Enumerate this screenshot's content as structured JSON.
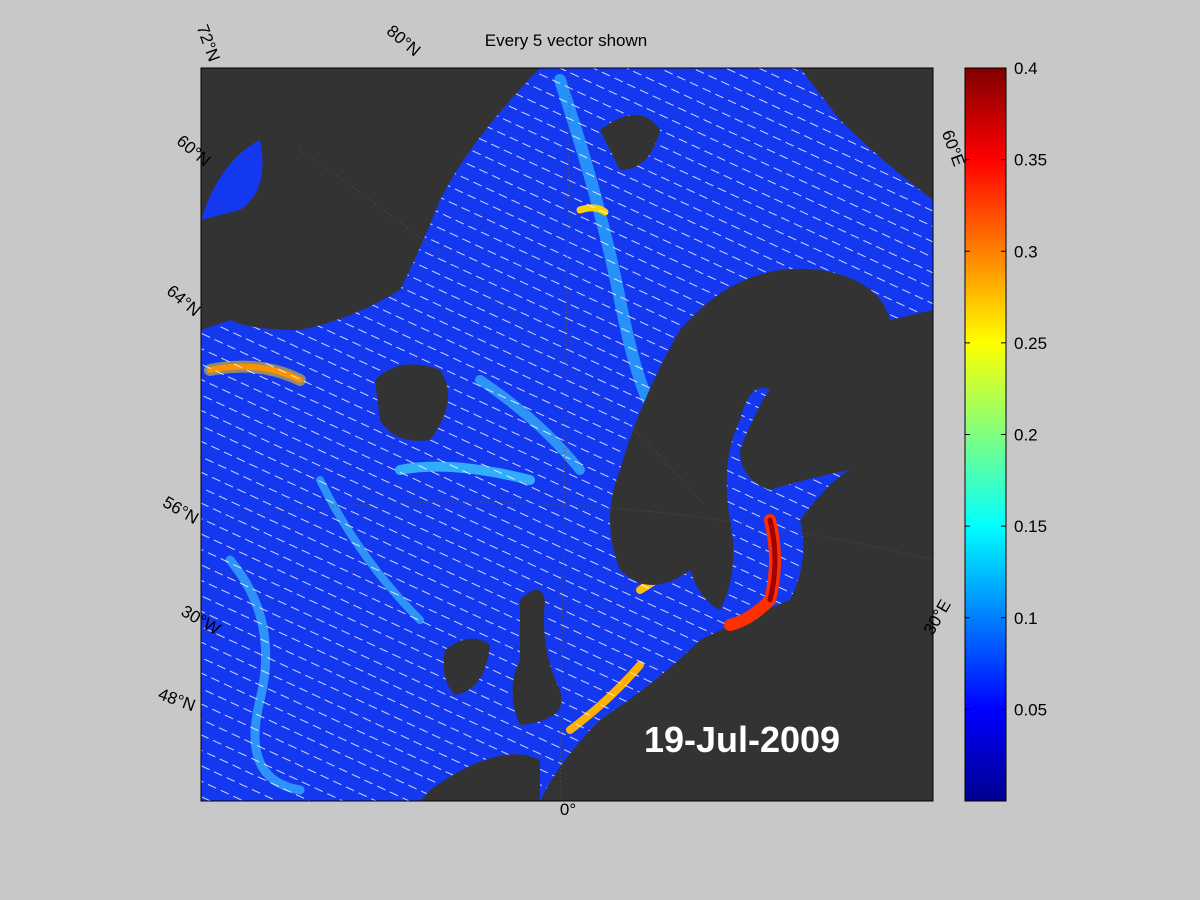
{
  "title": "Every 5 vector shown",
  "date_label": "19-Jul-2009",
  "graticule_labels": [
    "72°N",
    "80°N",
    "60°E",
    "60°N",
    "64°N",
    "56°N",
    "30°W",
    "48°N",
    "0°",
    "30°E"
  ],
  "colorbar": {
    "lim": [
      0,
      0.4
    ],
    "ticks": [
      0.05,
      0.1,
      0.15,
      0.2,
      0.25,
      0.3,
      0.35,
      0.4
    ]
  }
}
